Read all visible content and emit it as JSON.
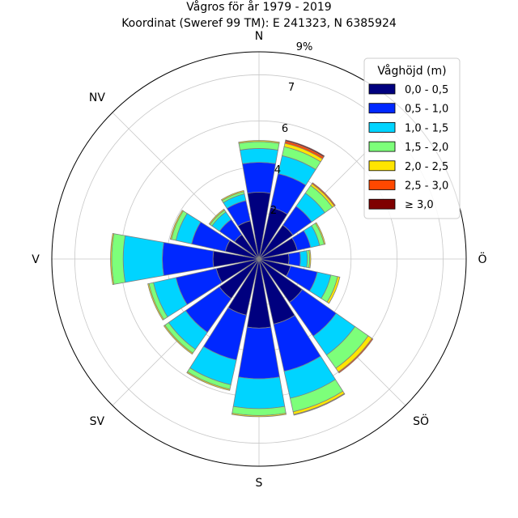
{
  "title_line1": "Vågros för år 1979 - 2019",
  "title_line2": "Koordinat (Sweref 99 TM): E 241323, N 6385924",
  "chart_data": {
    "type": "windrose",
    "unit": "%",
    "radial_ticks": [
      "2",
      "4",
      "6",
      "7",
      "9%"
    ],
    "rmax": 9,
    "directions": [
      "N",
      "NNÖ",
      "NÖ",
      "ÖNÖ",
      "Ö",
      "ÖSÖ",
      "SÖ",
      "SSÖ",
      "S",
      "SSV",
      "SV",
      "VSV",
      "V",
      "VNV",
      "NV",
      "NNV"
    ],
    "direction_labels": [
      "N",
      "NV",
      "V",
      "SV",
      "S",
      "SÖ",
      "Ö"
    ],
    "legend": {
      "title": "Våghöjd (m)",
      "bins": [
        "0,0 - 0,5",
        "0,5 - 1,0",
        "1,0 - 1,5",
        "1,5 - 2,0",
        "2,0 - 2,5",
        "2,5 - 3,0",
        "≥ 3,0"
      ],
      "colors": [
        "#00007f",
        "#0028ff",
        "#00d4ff",
        "#7dff7a",
        "#ffe500",
        "#ff4800",
        "#7f0000"
      ],
      "position": "top-right"
    },
    "series": [
      {
        "name": "0,0 - 0,5",
        "values": [
          2.9,
          2.3,
          1.8,
          1.7,
          1.3,
          1.4,
          2.3,
          2.9,
          3.0,
          2.5,
          2.1,
          1.9,
          2.0,
          1.5,
          1.3,
          1.7
        ]
      },
      {
        "name": "0,5 - 1,0",
        "values": [
          1.3,
          1.5,
          1.0,
          0.6,
          0.5,
          1.2,
          1.8,
          2.1,
          2.2,
          2.0,
          1.8,
          1.8,
          2.2,
          1.5,
          0.8,
          0.9
        ]
      },
      {
        "name": "1,0 - 1,5",
        "values": [
          0.6,
          0.8,
          0.7,
          0.4,
          0.3,
          0.6,
          1.0,
          1.2,
          1.3,
          1.1,
          0.9,
          1.0,
          1.7,
          0.7,
          0.4,
          0.3
        ]
      },
      {
        "name": "1,5 - 2,0",
        "values": [
          0.3,
          0.4,
          0.4,
          0.2,
          0.1,
          0.3,
          0.7,
          0.6,
          0.3,
          0.2,
          0.2,
          0.2,
          0.5,
          0.2,
          0.1,
          0.1
        ]
      },
      {
        "name": "2,0 - 2,5",
        "values": [
          0.05,
          0.15,
          0.1,
          0.05,
          0.05,
          0.1,
          0.2,
          0.12,
          0.05,
          0.05,
          0.05,
          0.05,
          0.05,
          0.05,
          0.05,
          0.05
        ]
      },
      {
        "name": "2,5 - 3,0",
        "values": [
          0.0,
          0.1,
          0.05,
          0.0,
          0.0,
          0.0,
          0.05,
          0.03,
          0.0,
          0.0,
          0.0,
          0.0,
          0.0,
          0.0,
          0.0,
          0.0
        ]
      },
      {
        "name": "≥ 3,0",
        "values": [
          0.0,
          0.05,
          0.0,
          0.0,
          0.0,
          0.0,
          0.0,
          0.0,
          0.0,
          0.0,
          0.0,
          0.0,
          0.0,
          0.0,
          0.0,
          0.0
        ]
      }
    ]
  }
}
